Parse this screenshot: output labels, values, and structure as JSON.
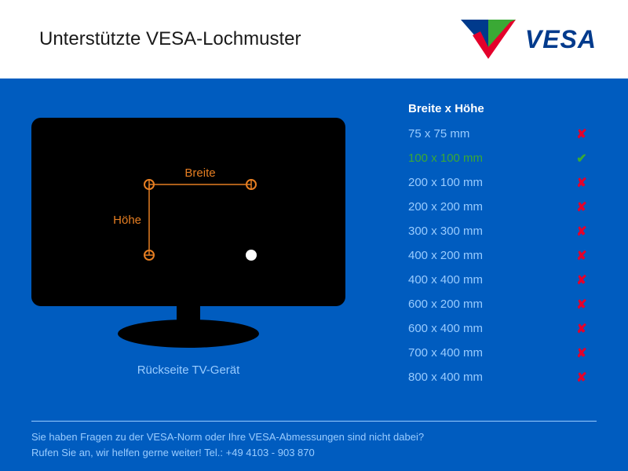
{
  "header": {
    "title": "Unterstützte VESA-Lochmuster",
    "logo_text": "VESA"
  },
  "logo": {
    "blue": "#003a8c",
    "green": "#3aa935",
    "red": "#e4002b"
  },
  "panel": {
    "bg": "#005cbf",
    "text_color": "#99ccff",
    "accent_color": "#e67e22"
  },
  "tv": {
    "width_label": "Breite",
    "height_label": "Höhe",
    "caption": "Rückseite TV-Gerät",
    "body_color": "#000000",
    "label_color": "#e67e22",
    "hole_color": "#ffffff"
  },
  "table": {
    "header": "Breite x Höhe",
    "supported_label_color": "#3aa935",
    "unsupported_label_color": "#99ccff",
    "check_color": "#3aa935",
    "cross_color": "#e4002b",
    "rows": [
      {
        "label": "75 x 75 mm",
        "supported": false
      },
      {
        "label": "100 x 100 mm",
        "supported": true
      },
      {
        "label": "200 x 100 mm",
        "supported": false
      },
      {
        "label": "200 x 200 mm",
        "supported": false
      },
      {
        "label": "300 x 300 mm",
        "supported": false
      },
      {
        "label": "400 x 200 mm",
        "supported": false
      },
      {
        "label": "400 x 400 mm",
        "supported": false
      },
      {
        "label": "600 x 200 mm",
        "supported": false
      },
      {
        "label": "600 x 400 mm",
        "supported": false
      },
      {
        "label": "700 x 400 mm",
        "supported": false
      },
      {
        "label": "800 x 400 mm",
        "supported": false
      }
    ]
  },
  "footer": {
    "line1": "Sie haben Fragen zu der VESA-Norm oder Ihre VESA-Abmessungen sind nicht dabei?",
    "line2": "Rufen Sie an, wir helfen gerne weiter! Tel.: +49 4103 - 903 870"
  }
}
